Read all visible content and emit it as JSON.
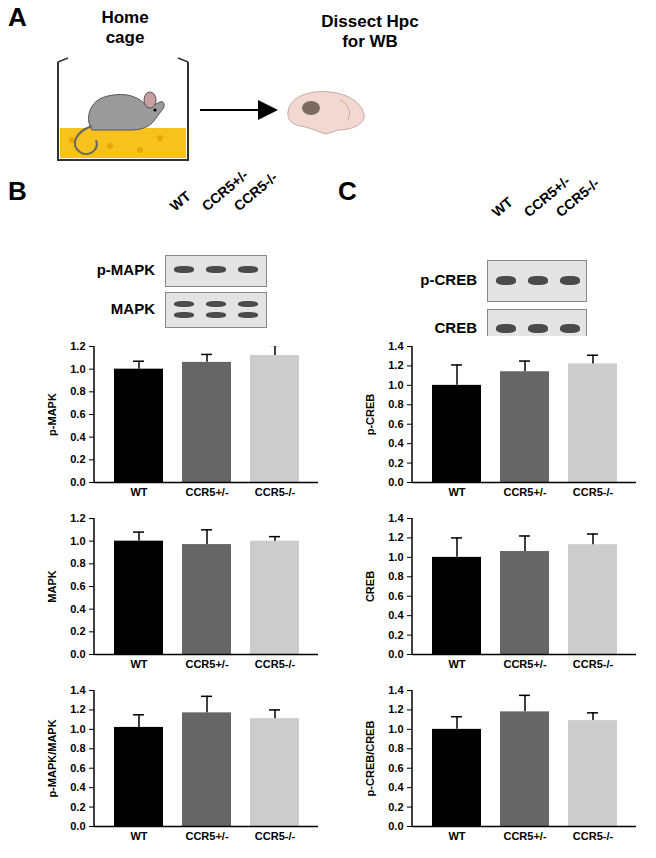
{
  "chart_data": [
    {
      "type": "bar",
      "y_label": "p-MAPK",
      "categories": [
        "WT",
        "CCR5+/-",
        "CCR5-/-"
      ],
      "values": [
        1.0,
        1.06,
        1.12
      ],
      "errors": [
        0.07,
        0.07,
        0.09
      ],
      "colors": [
        "#000000",
        "#666666",
        "#cccccc"
      ],
      "ylim": [
        0,
        1.2
      ],
      "yticks": [
        {
          "value": 0,
          "label": "0.0"
        },
        0.2,
        0.4,
        0.6,
        0.8,
        {
          "value": 1,
          "label": "1.0"
        },
        1.2
      ]
    },
    {
      "type": "bar",
      "y_label": "MAPK",
      "categories": [
        "WT",
        "CCR5+/-",
        "CCR5-/-"
      ],
      "values": [
        1.0,
        0.97,
        1.0
      ],
      "errors": [
        0.08,
        0.13,
        0.04
      ],
      "colors": [
        "#000000",
        "#666666",
        "#cccccc"
      ],
      "ylim": [
        0,
        1.2
      ],
      "yticks": [
        {
          "value": 0,
          "label": "0.0"
        },
        0.2,
        0.4,
        0.6,
        0.8,
        {
          "value": 1,
          "label": "1.0"
        },
        1.2
      ]
    },
    {
      "type": "bar",
      "y_label": "p-MAPK/MAPK",
      "categories": [
        "WT",
        "CCR5+/-",
        "CCR5-/-"
      ],
      "values": [
        1.02,
        1.17,
        1.11
      ],
      "errors": [
        0.13,
        0.17,
        0.09
      ],
      "colors": [
        "#000000",
        "#666666",
        "#cccccc"
      ],
      "ylim": [
        0,
        1.4
      ],
      "yticks": [
        {
          "value": 0,
          "label": "0.0"
        },
        0.2,
        0.4,
        0.6,
        0.8,
        {
          "value": 1,
          "label": "1.0"
        },
        1.2,
        1.4
      ]
    },
    {
      "type": "bar",
      "y_label": "p-CREB",
      "categories": [
        "WT",
        "CCR5+/-",
        "CCR5-/-"
      ],
      "values": [
        1.0,
        1.14,
        1.22
      ],
      "errors": [
        0.21,
        0.11,
        0.09
      ],
      "colors": [
        "#000000",
        "#666666",
        "#cccccc"
      ],
      "ylim": [
        0,
        1.4
      ],
      "yticks": [
        {
          "value": 0,
          "label": "0.0"
        },
        0.2,
        0.4,
        0.6,
        0.8,
        {
          "value": 1,
          "label": "1.0"
        },
        1.2,
        1.4
      ]
    },
    {
      "type": "bar",
      "y_label": "CREB",
      "categories": [
        "WT",
        "CCR5+/-",
        "CCR5-/-"
      ],
      "values": [
        1.0,
        1.06,
        1.13
      ],
      "errors": [
        0.2,
        0.16,
        0.11
      ],
      "colors": [
        "#000000",
        "#666666",
        "#cccccc"
      ],
      "ylim": [
        0,
        1.4
      ],
      "yticks": [
        {
          "value": 0,
          "label": "0.0"
        },
        0.2,
        0.4,
        0.6,
        0.8,
        {
          "value": 1,
          "label": "1.0"
        },
        1.2,
        1.4
      ]
    },
    {
      "type": "bar",
      "y_label": "p-CREB/CREB",
      "categories": [
        "WT",
        "CCR5+/-",
        "CCR5-/-"
      ],
      "values": [
        1.0,
        1.18,
        1.09
      ],
      "errors": [
        0.13,
        0.17,
        0.08
      ],
      "colors": [
        "#000000",
        "#666666",
        "#cccccc"
      ],
      "ylim": [
        0,
        1.4
      ],
      "yticks": [
        {
          "value": 0,
          "label": "0.0"
        },
        0.2,
        0.4,
        0.6,
        0.8,
        {
          "value": 1,
          "label": "1.0"
        },
        1.2,
        1.4
      ]
    }
  ],
  "figure": {
    "panel_a": {
      "label": "A",
      "left_text": "Home cage",
      "right_text": "Dissect Hpc for WB"
    },
    "panel_b": {
      "label": "B",
      "lanes": [
        "WT",
        "CCR5+/-",
        "CCR5-/-"
      ],
      "blot_rows": [
        "p-MAPK",
        "MAPK"
      ]
    },
    "panel_c": {
      "label": "C",
      "lanes": [
        "WT",
        "CCR5+/-",
        "CCR5-/-"
      ],
      "blot_rows": [
        "p-CREB",
        "CREB"
      ]
    }
  }
}
